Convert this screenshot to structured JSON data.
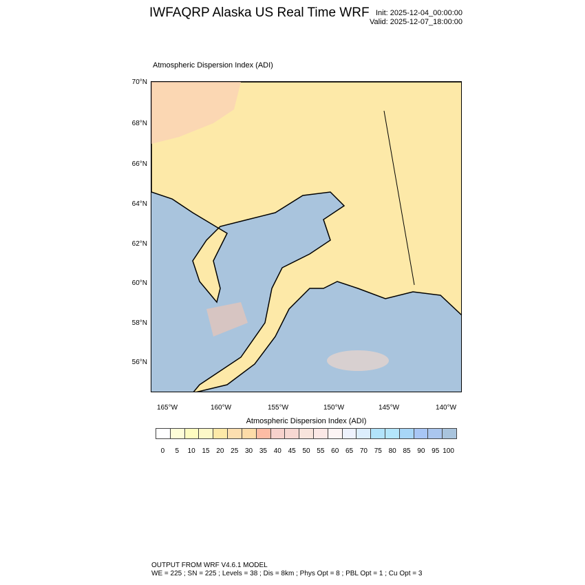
{
  "header": {
    "title": "IWFAQRP Alaska US Real Time WRF",
    "init": "Init: 2025-12-04_00:00:00",
    "valid": "Valid: 2025-12-07_18:00:00"
  },
  "map": {
    "subtitle": "Atmospheric Dispersion Index   (ADI)",
    "ocean_color": "#a9c4dd",
    "land_color": "#fde9a8",
    "lat_labels": [
      "70°N",
      "68°N",
      "66°N",
      "64°N",
      "62°N",
      "60°N",
      "58°N",
      "56°N"
    ],
    "lon_labels": [
      "165°W",
      "160°W",
      "155°W",
      "150°W",
      "145°W",
      "140°W"
    ]
  },
  "colorbar": {
    "title": "Atmospheric Dispersion Index  (ADI)",
    "labels": [
      "0",
      "5",
      "10",
      "15",
      "20",
      "25",
      "30",
      "35",
      "40",
      "45",
      "50",
      "55",
      "60",
      "65",
      "70",
      "75",
      "80",
      "85",
      "90",
      "95",
      "100"
    ],
    "colors": [
      "#ffffff",
      "#fefdd8",
      "#fefcc0",
      "#fdf8c8",
      "#fde9a8",
      "#fddfb0",
      "#fddca8",
      "#fdbca4",
      "#f7d2cc",
      "#f7d8d2",
      "#f8e4dc",
      "#fbe8e6",
      "#fdf4f4",
      "#eef2fd",
      "#dceefd",
      "#b2e3fa",
      "#b4e6fb",
      "#a8d6f7",
      "#a8c6f5",
      "#aac6ee",
      "#a9c4dd"
    ]
  },
  "footer": {
    "line1": "OUTPUT FROM WRF V4.6.1 MODEL",
    "line2": "WE = 225 ; SN = 225 ; Levels = 38 ; Dis = 8km ; Phys Opt = 8 ; PBL Opt = 1 ; Cu Opt = 3"
  }
}
